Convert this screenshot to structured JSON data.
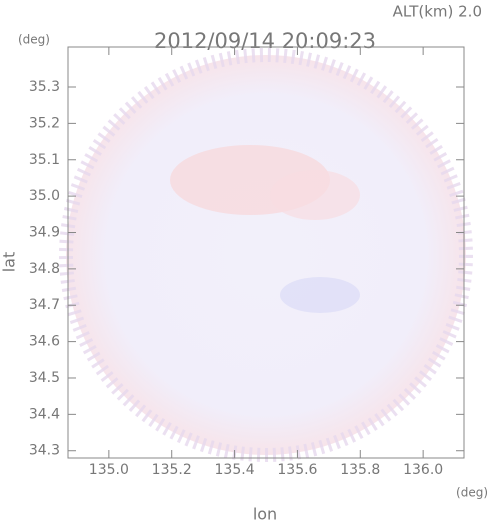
{
  "chart_data": {
    "type": "radar-map",
    "title": "2012/09/14 20:09:23",
    "altitude_label": "ALT(km) 2.0",
    "y_unit": "(deg)",
    "x_unit": "(deg)",
    "xlabel": "lon",
    "ylabel": "lat",
    "xlim": [
      134.87,
      136.13
    ],
    "xticks": [
      {
        "value": 135,
        "label": "135.0"
      },
      135.2,
      135.4,
      135.6,
      135.8,
      {
        "value": 136,
        "label": "136.0"
      }
    ],
    "ylim": [
      34.28,
      35.41
    ],
    "yticks": [
      34.3,
      34.4,
      34.5,
      34.6,
      34.7,
      34.8,
      34.9,
      {
        "value": 35,
        "label": "35.0"
      },
      35.1,
      35.2,
      35.3
    ]
  }
}
